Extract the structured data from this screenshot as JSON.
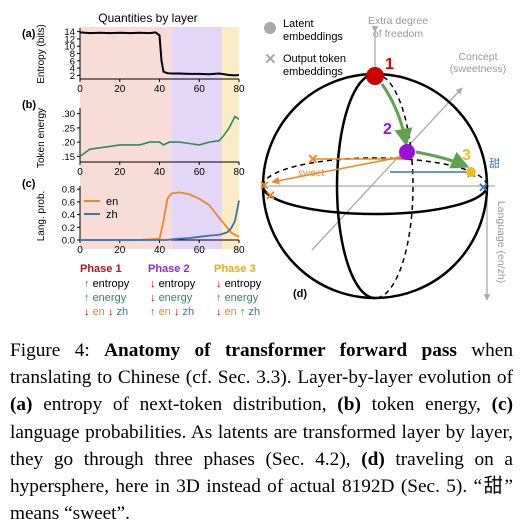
{
  "plot_a": {
    "panel_label": "(a)",
    "title": "Quantities by layer",
    "ylabel": "Entropy (bits)",
    "yticks": [
      "14",
      "12",
      "10",
      "8",
      "6",
      "4",
      "2"
    ],
    "xticks": [
      "0",
      "20",
      "40",
      "60",
      "80"
    ]
  },
  "plot_b": {
    "panel_label": "(b)",
    "ylabel": "Token energy",
    "yticks": [
      ".30",
      ".25",
      ".20",
      ".15"
    ],
    "xticks": [
      "0",
      "20",
      "40",
      "60",
      "80"
    ]
  },
  "plot_c": {
    "panel_label": "(c)",
    "ylabel": "Lang. prob.",
    "yticks": [
      "0.8",
      "0.6",
      "0.4",
      "0.2",
      "0.0"
    ],
    "xticks": [
      "0",
      "20",
      "40",
      "60",
      "80"
    ],
    "legend": [
      "en",
      "zh"
    ]
  },
  "phases": [
    {
      "title": "Phase 1",
      "l1_arrow": "↑",
      "l1": "entropy",
      "l2_arrow": "↑",
      "l2": "energy",
      "l3_arrow1": "↓",
      "l3_en": "en",
      "l3_arrow2": "↓",
      "l3_zh": "zh"
    },
    {
      "title": "Phase 2",
      "l1_arrow": "↓",
      "l1": "entropy",
      "l2_arrow": "↓",
      "l2": "energy",
      "l3_arrow1": "↑",
      "l3_en": "en",
      "l3_arrow2": "↓",
      "l3_zh": "zh"
    },
    {
      "title": "Phase 3",
      "l1_arrow": "↓",
      "l1": "entropy",
      "l2_arrow": "↑",
      "l2": "energy",
      "l3_arrow1": "↓",
      "l3_en": "en",
      "l3_arrow2": "↑",
      "l3_zh": "zh"
    }
  ],
  "sphere": {
    "legend_latent_line1": "Latent",
    "legend_latent_line2": "embeddings",
    "legend_output_line1": "Output token",
    "legend_output_line2": "embeddings",
    "axis_extra_line1": "Extra degree",
    "axis_extra_line2": "of freedom",
    "axis_concept_line1": "Concept",
    "axis_concept_line2": "(sweetness)",
    "axis_language": "Language (en/zh)",
    "point1": "1",
    "point2": "2",
    "point3": "3",
    "sweet_label": "sweet",
    "tian_label": "甜",
    "panel_label": "(d)"
  },
  "colors": {
    "phase1_bg": "#f8dcd8",
    "phase2_bg": "#e4d6f6",
    "phase3_bg": "#fbecc6",
    "entropy_line": "#000000",
    "energy_line": "#2e8b57",
    "en_line": "#e8892c",
    "zh_line": "#3b73b3",
    "phase1_title": "#b0122a",
    "phase2_title": "#8a2be2",
    "phase3_title": "#e0b020",
    "latent_red": "#cc0000",
    "latent_purple": "#9a10d8",
    "latent_yellow": "#e8c020",
    "trajectory_green": "#5fa24f",
    "output_x_grey": "#999999"
  },
  "caption": {
    "fig_label": "Figure 4: ",
    "bold_title": "Anatomy of transformer forward pass",
    "p1": " when translating to Chinese (cf. Sec. ",
    "ref_33": "3.3",
    "p2": "). Layer-by-layer evolution of ",
    "a": "(a)",
    "p3": " entropy of next-token distribution, ",
    "b": "(b)",
    "p4": " token energy, ",
    "c": "(c)",
    "p5": " language probabilities. As latents are transformed layer by layer, they go through three phases (Sec. ",
    "ref_42": "4.2",
    "p6": "), ",
    "d": "(d)",
    "p7": " traveling on a hypersphere, here in 3D instead of actual 8192D (Sec. ",
    "ref_5": "5",
    "p8": "). “甜” means “sweet”."
  },
  "chart_data": [
    {
      "type": "line",
      "title": "Quantities by layer",
      "ylabel": "Entropy (bits)",
      "x": [
        0,
        5,
        10,
        15,
        20,
        25,
        30,
        35,
        38,
        40,
        41,
        42,
        44,
        46,
        50,
        55,
        60,
        65,
        70,
        75,
        78,
        80
      ],
      "series": [
        {
          "values": [
            13.8,
            13.6,
            13.7,
            13.6,
            13.7,
            13.6,
            13.7,
            13.6,
            13.8,
            13.0,
            6.0,
            3.0,
            2.6,
            2.5,
            2.5,
            2.4,
            2.4,
            2.3,
            2.5,
            2.1,
            2.0,
            2.1
          ]
        }
      ],
      "xlim": [
        0,
        80
      ],
      "ylim": [
        1,
        15
      ]
    },
    {
      "type": "line",
      "ylabel": "Token energy",
      "x": [
        0,
        2,
        5,
        10,
        15,
        20,
        25,
        30,
        35,
        40,
        42,
        45,
        50,
        55,
        60,
        65,
        70,
        72,
        75,
        78,
        80
      ],
      "series": [
        {
          "values": [
            0.15,
            0.16,
            0.175,
            0.18,
            0.185,
            0.19,
            0.19,
            0.19,
            0.2,
            0.2,
            0.19,
            0.2,
            0.2,
            0.195,
            0.19,
            0.2,
            0.205,
            0.22,
            0.25,
            0.29,
            0.28
          ]
        }
      ],
      "xlim": [
        0,
        80
      ],
      "ylim": [
        0.13,
        0.32
      ]
    },
    {
      "type": "line",
      "ylabel": "Lang. prob.",
      "x": [
        0,
        10,
        20,
        30,
        35,
        40,
        42,
        44,
        46,
        50,
        55,
        60,
        65,
        70,
        74,
        76,
        78,
        80
      ],
      "series": [
        {
          "name": "en",
          "values": [
            0.0,
            0.0,
            0.0,
            0.0,
            0.01,
            0.02,
            0.3,
            0.65,
            0.73,
            0.75,
            0.72,
            0.65,
            0.55,
            0.35,
            0.2,
            0.12,
            0.08,
            0.05
          ]
        },
        {
          "name": "zh",
          "values": [
            0.0,
            0.0,
            0.0,
            0.0,
            0.0,
            0.0,
            0.0,
            0.0,
            0.01,
            0.02,
            0.03,
            0.05,
            0.07,
            0.08,
            0.12,
            0.18,
            0.3,
            0.62
          ]
        }
      ],
      "xlim": [
        0,
        80
      ],
      "ylim": [
        0,
        0.85
      ]
    }
  ]
}
